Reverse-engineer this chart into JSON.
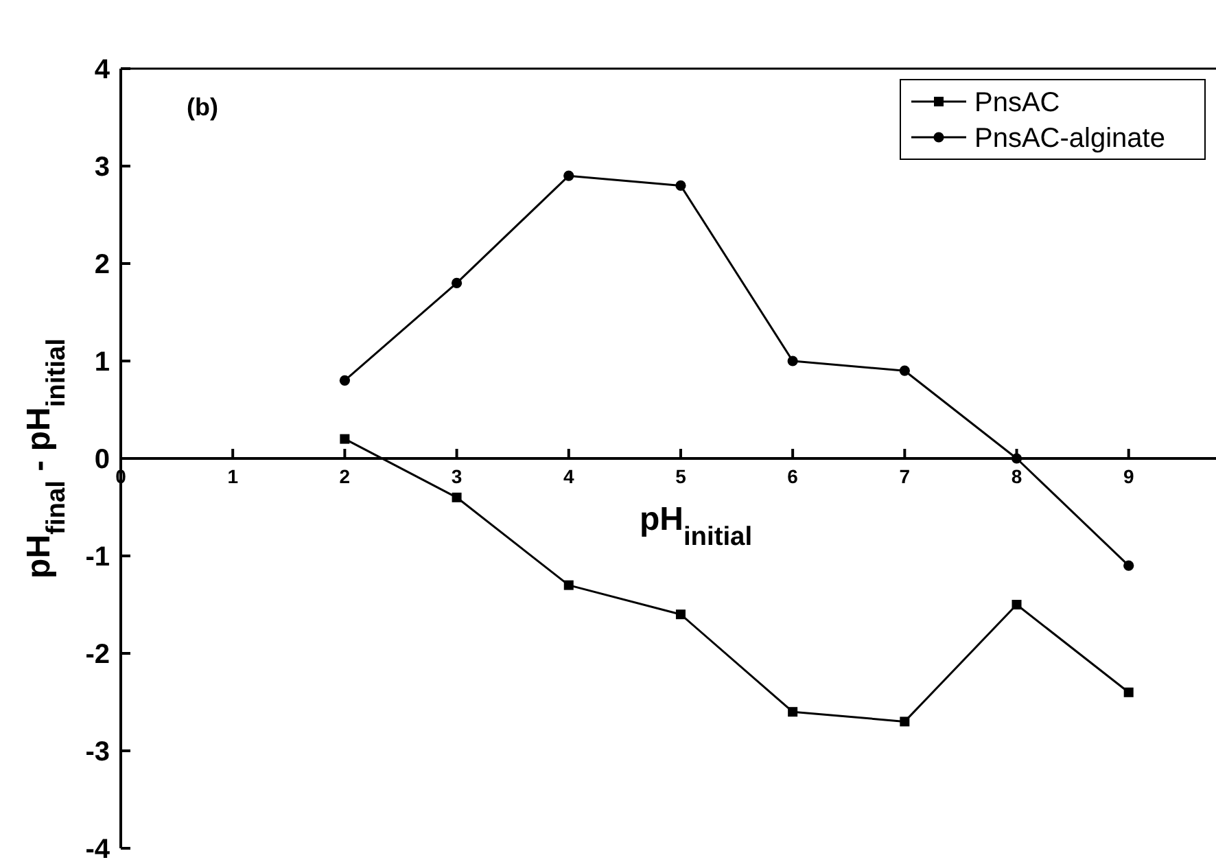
{
  "chart_data": {
    "type": "line",
    "xlabel": "pH$_{initial}$",
    "ylabel": "pH$_{final}$ - pH$_{initial}$",
    "annotations": [
      "(b)"
    ],
    "x": [
      2,
      3,
      4,
      5,
      6,
      7,
      8,
      9
    ],
    "series": [
      {
        "name": "PnsAC",
        "color": "#000000",
        "marker": "square",
        "values": [
          0.2,
          -0.4,
          -1.3,
          -1.6,
          -2.6,
          -2.7,
          -1.5,
          -2.4
        ]
      },
      {
        "name": "PnsAC-alginate",
        "color": "#000000",
        "marker": "circle",
        "values": [
          0.8,
          1.8,
          2.9,
          2.8,
          1.0,
          0.9,
          0.0,
          -1.1
        ]
      }
    ],
    "xlim": [
      0,
      9.78
    ],
    "xticks": [
      0,
      1,
      2,
      3,
      4,
      5,
      6,
      7,
      8,
      9
    ],
    "ylim": [
      -4,
      4
    ],
    "yticks": [
      -4,
      -3,
      -2,
      -1,
      0,
      1,
      2,
      3,
      4
    ],
    "grid": false,
    "legend": "top right",
    "line_style": "solid"
  }
}
